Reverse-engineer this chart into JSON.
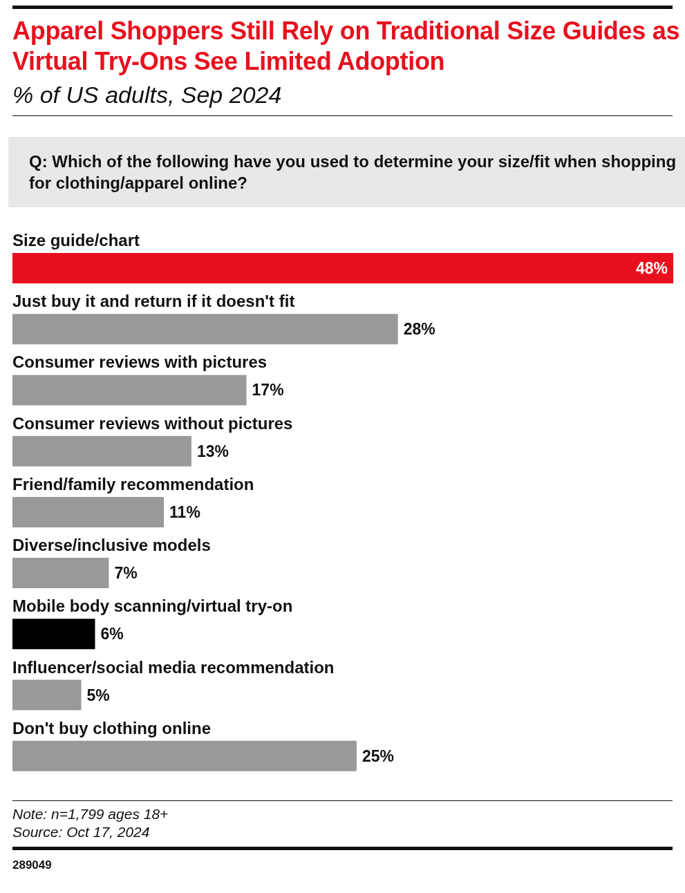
{
  "chart_data": {
    "type": "bar",
    "orientation": "horizontal",
    "title": "Apparel Shoppers Still Rely on Traditional Size Guides as Virtual Try-Ons See Limited Adoption",
    "subtitle": "% of US adults, Sep 2024",
    "categories": [
      "Size guide/chart",
      "Just buy it and return if it doesn't fit",
      "Consumer reviews with pictures",
      "Consumer reviews without pictures",
      "Friend/family recommendation",
      "Diverse/inclusive models",
      "Mobile body scanning/virtual try-on",
      "Influencer/social media recommendation",
      "Don't buy clothing online"
    ],
    "values": [
      48,
      28,
      17,
      13,
      11,
      7,
      6,
      5,
      25
    ],
    "value_labels": [
      "48%",
      "28%",
      "17%",
      "13%",
      "11%",
      "7%",
      "6%",
      "5%",
      "25%"
    ],
    "colors": [
      "#e8101e",
      "#999999",
      "#999999",
      "#999999",
      "#999999",
      "#999999",
      "#000000",
      "#999999",
      "#999999"
    ],
    "annotations": [
      "Q: Which of the following have you used to determine your size/fit when shopping for clothing/apparel online?",
      "Note: n=1,799 ages 18+",
      "Source: Oct 17, 2024",
      "289049"
    ]
  }
}
